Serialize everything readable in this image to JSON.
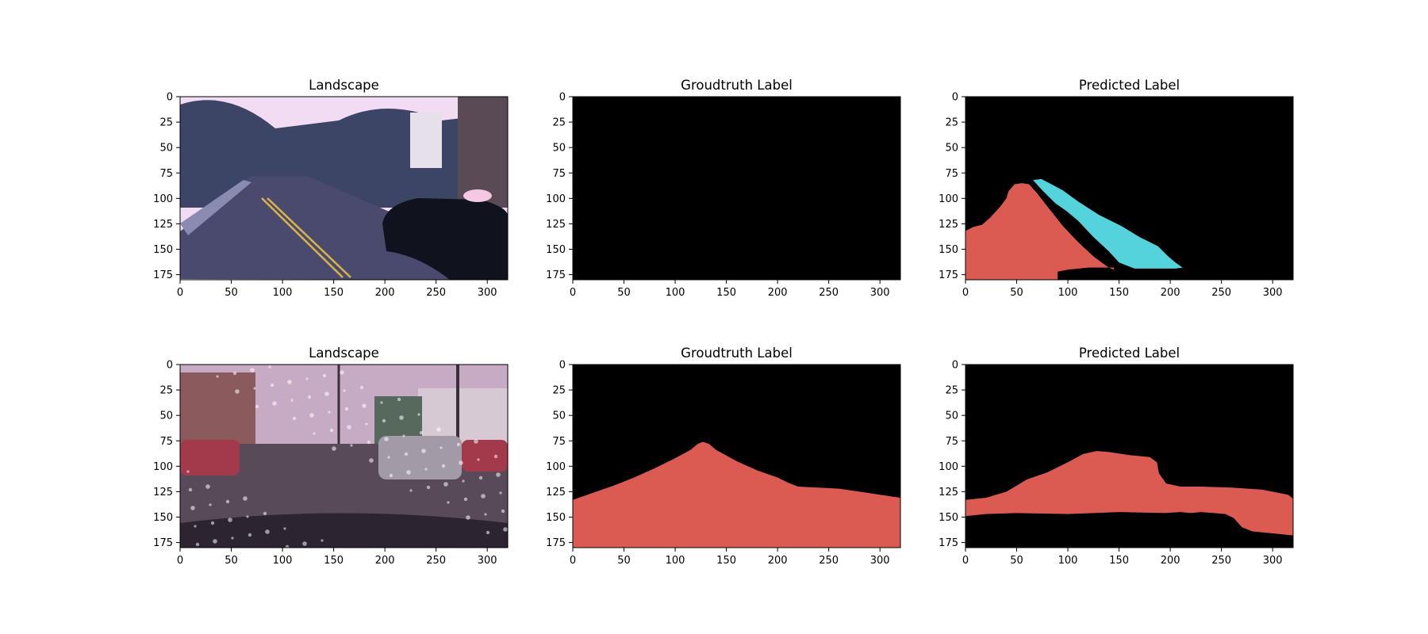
{
  "figure": {
    "axes": {
      "x_ticks": [
        0,
        50,
        100,
        150,
        200,
        250,
        300
      ],
      "y_ticks": [
        0,
        25,
        50,
        75,
        100,
        125,
        150,
        175
      ],
      "xlim": [
        0,
        320
      ],
      "ylim": [
        180,
        0
      ],
      "y_axis_inverted": true
    },
    "colors": {
      "background": "#000000",
      "class_red": "#db5b53",
      "class_cyan": "#55d3dc"
    },
    "panels": [
      {
        "title": "Landscape",
        "kind": "photo",
        "scene": "suburban-street-with-dark-sedan",
        "palette": {
          "sky": "#f1dcf4",
          "trees": "#3d4566",
          "road": "#4a4a6e",
          "car": "#10131e"
        }
      },
      {
        "title": "Groudtruth Label",
        "kind": "mask",
        "regions": []
      },
      {
        "title": "Predicted Label",
        "kind": "mask",
        "regions": [
          {
            "class": "red",
            "polygon": [
              [
                0,
                132
              ],
              [
                8,
                128
              ],
              [
                16,
                126
              ],
              [
                24,
                119
              ],
              [
                34,
                108
              ],
              [
                40,
                100
              ],
              [
                42,
                93
              ],
              [
                48,
                86
              ],
              [
                55,
                85
              ],
              [
                62,
                86
              ],
              [
                70,
                95
              ],
              [
                80,
                108
              ],
              [
                95,
                127
              ],
              [
                110,
                143
              ],
              [
                125,
                157
              ],
              [
                137,
                166
              ],
              [
                140,
                168
              ],
              [
                145,
                170
              ],
              [
                145,
                168
              ],
              [
                135,
                168
              ],
              [
                120,
                168
              ],
              [
                100,
                170
              ],
              [
                90,
                172
              ],
              [
                90,
                180
              ],
              [
                0,
                180
              ]
            ]
          },
          {
            "class": "cyan",
            "polygon": [
              [
                66,
                82
              ],
              [
                74,
                81
              ],
              [
                82,
                85
              ],
              [
                95,
                92
              ],
              [
                110,
                103
              ],
              [
                130,
                116
              ],
              [
                152,
                127
              ],
              [
                170,
                138
              ],
              [
                188,
                147
              ],
              [
                198,
                157
              ],
              [
                205,
                163
              ],
              [
                212,
                168
              ],
              [
                205,
                169
              ],
              [
                180,
                169
              ],
              [
                165,
                169
              ],
              [
                150,
                163
              ],
              [
                140,
                152
              ],
              [
                125,
                138
              ],
              [
                110,
                122
              ],
              [
                98,
                112
              ],
              [
                88,
                105
              ],
              [
                75,
                92
              ]
            ]
          }
        ]
      },
      {
        "title": "Landscape",
        "kind": "photo",
        "scene": "rainy-windshield-street-with-parked-cars",
        "palette": {
          "sky": "#c7aac3",
          "buildings": "#8a5a5c",
          "road": "#594a5a",
          "car": "#a33a4b"
        }
      },
      {
        "title": "Groudtruth Label",
        "kind": "mask",
        "regions": [
          {
            "class": "red",
            "polygon": [
              [
                0,
                133
              ],
              [
                20,
                126
              ],
              [
                40,
                119
              ],
              [
                60,
                111
              ],
              [
                80,
                102
              ],
              [
                100,
                92
              ],
              [
                115,
                84
              ],
              [
                122,
                78
              ],
              [
                127,
                76
              ],
              [
                133,
                78
              ],
              [
                140,
                84
              ],
              [
                160,
                95
              ],
              [
                180,
                104
              ],
              [
                200,
                111
              ],
              [
                210,
                116
              ],
              [
                220,
                120
              ],
              [
                240,
                121
              ],
              [
                260,
                122
              ],
              [
                280,
                125
              ],
              [
                300,
                128
              ],
              [
                320,
                131
              ],
              [
                320,
                180
              ],
              [
                0,
                180
              ]
            ]
          }
        ]
      },
      {
        "title": "Predicted Label",
        "kind": "mask",
        "regions": [
          {
            "class": "red",
            "polygon": [
              [
                0,
                133
              ],
              [
                20,
                131
              ],
              [
                40,
                125
              ],
              [
                60,
                113
              ],
              [
                80,
                106
              ],
              [
                100,
                96
              ],
              [
                115,
                88
              ],
              [
                128,
                85
              ],
              [
                140,
                86
              ],
              [
                160,
                89
              ],
              [
                180,
                91
              ],
              [
                187,
                96
              ],
              [
                189,
                107
              ],
              [
                196,
                117
              ],
              [
                210,
                120
              ],
              [
                230,
                120
              ],
              [
                260,
                121
              ],
              [
                290,
                123
              ],
              [
                315,
                128
              ],
              [
                320,
                132
              ],
              [
                320,
                168
              ],
              [
                300,
                166
              ],
              [
                280,
                164
              ],
              [
                270,
                160
              ],
              [
                262,
                151
              ],
              [
                254,
                147
              ],
              [
                230,
                145
              ],
              [
                220,
                146
              ],
              [
                210,
                145
              ],
              [
                195,
                146
              ],
              [
                150,
                145
              ],
              [
                100,
                147
              ],
              [
                50,
                146
              ],
              [
                20,
                147
              ],
              [
                0,
                149
              ]
            ]
          }
        ]
      }
    ]
  }
}
